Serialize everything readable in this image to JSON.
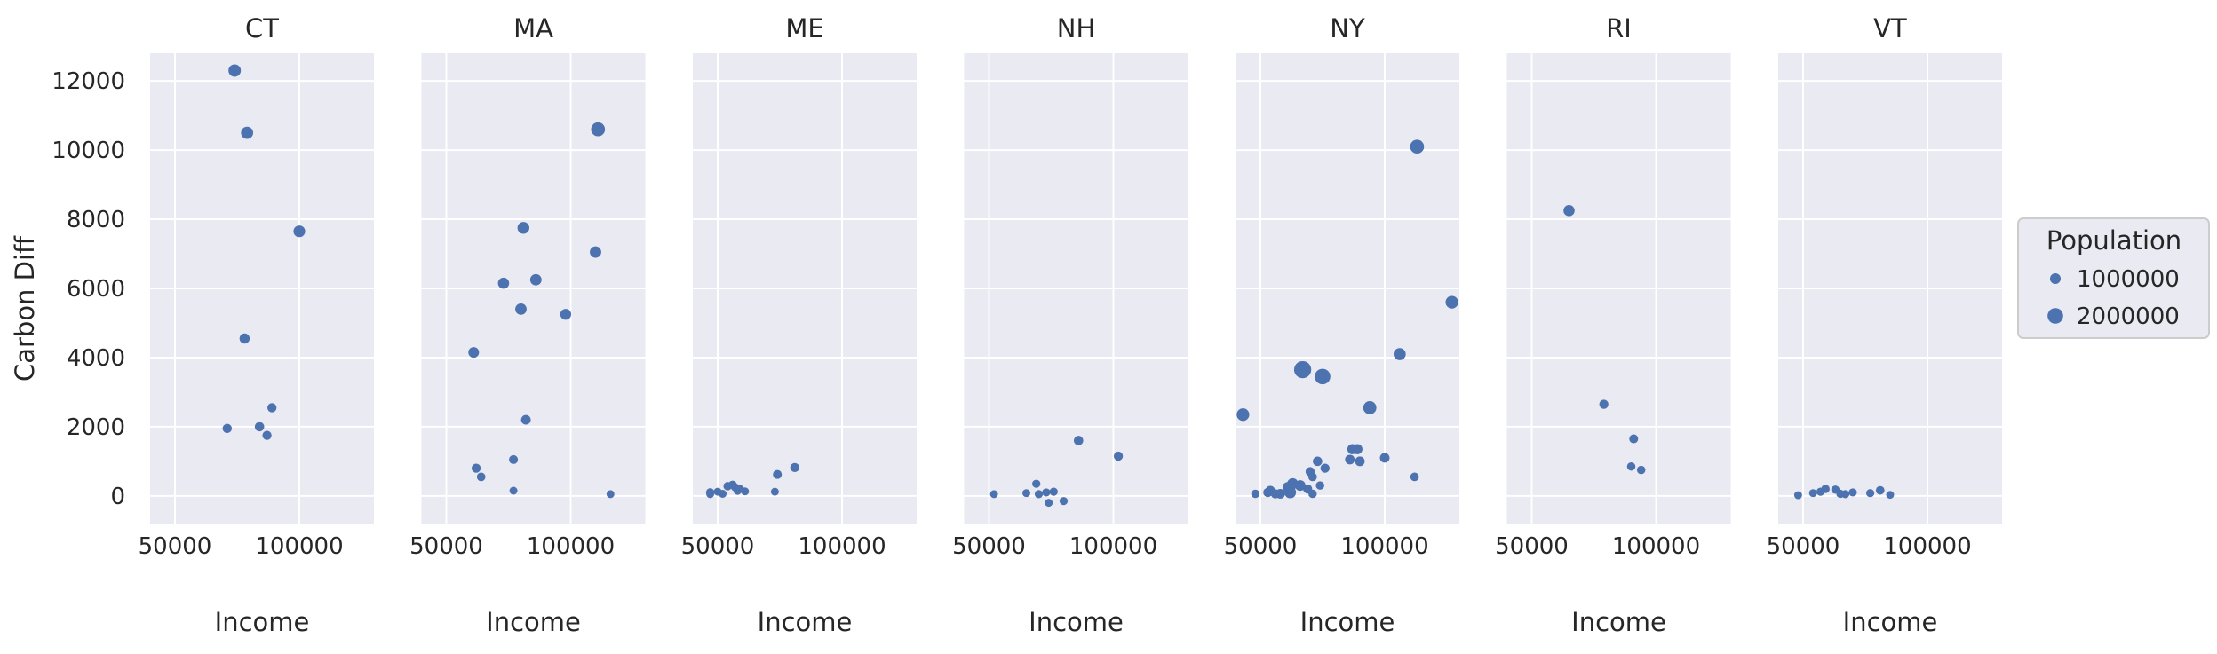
{
  "chart_data": {
    "type": "scatter",
    "facet_by": "state",
    "xlabel": "Income",
    "ylabel": "Carbon Diff",
    "xlim": [
      40000,
      130000
    ],
    "ylim": [
      -800,
      12800
    ],
    "xticks": [
      50000,
      100000
    ],
    "yticks": [
      0,
      2000,
      4000,
      6000,
      8000,
      10000,
      12000
    ],
    "grid": true,
    "color": "#4c72b0",
    "legend": {
      "title": "Population",
      "placement": "right",
      "entries": [
        {
          "label": "1000000",
          "value": 1000000
        },
        {
          "label": "2000000",
          "value": 2000000
        }
      ]
    },
    "panels": [
      {
        "title": "CT",
        "points": [
          {
            "x": 74000,
            "y": 12300,
            "pop": 1350000
          },
          {
            "x": 79000,
            "y": 10500,
            "pop": 1300000
          },
          {
            "x": 100000,
            "y": 7650,
            "pop": 1200000
          },
          {
            "x": 78000,
            "y": 4550,
            "pop": 900000
          },
          {
            "x": 71000,
            "y": 1950,
            "pop": 700000
          },
          {
            "x": 84000,
            "y": 2000,
            "pop": 750000
          },
          {
            "x": 87000,
            "y": 1750,
            "pop": 700000
          },
          {
            "x": 89000,
            "y": 2550,
            "pop": 700000
          }
        ]
      },
      {
        "title": "MA",
        "points": [
          {
            "x": 111000,
            "y": 10600,
            "pop": 1650000
          },
          {
            "x": 81000,
            "y": 7750,
            "pop": 1250000
          },
          {
            "x": 110000,
            "y": 7050,
            "pop": 1150000
          },
          {
            "x": 73000,
            "y": 6150,
            "pop": 1100000
          },
          {
            "x": 86000,
            "y": 6250,
            "pop": 1150000
          },
          {
            "x": 80000,
            "y": 5400,
            "pop": 1150000
          },
          {
            "x": 98000,
            "y": 5250,
            "pop": 1050000
          },
          {
            "x": 61000,
            "y": 4150,
            "pop": 1000000
          },
          {
            "x": 82000,
            "y": 2200,
            "pop": 800000
          },
          {
            "x": 62000,
            "y": 800,
            "pop": 700000
          },
          {
            "x": 64000,
            "y": 550,
            "pop": 600000
          },
          {
            "x": 77000,
            "y": 1050,
            "pop": 650000
          },
          {
            "x": 77000,
            "y": 150,
            "pop": 450000
          },
          {
            "x": 116000,
            "y": 50,
            "pop": 450000
          }
        ]
      },
      {
        "title": "ME",
        "points": [
          {
            "x": 47000,
            "y": 100,
            "pop": 550000
          },
          {
            "x": 47000,
            "y": 50,
            "pop": 450000
          },
          {
            "x": 50000,
            "y": 120,
            "pop": 450000
          },
          {
            "x": 52000,
            "y": 60,
            "pop": 450000
          },
          {
            "x": 54000,
            "y": 280,
            "pop": 550000
          },
          {
            "x": 56000,
            "y": 320,
            "pop": 550000
          },
          {
            "x": 57000,
            "y": 250,
            "pop": 500000
          },
          {
            "x": 58000,
            "y": 150,
            "pop": 500000
          },
          {
            "x": 59000,
            "y": 200,
            "pop": 450000
          },
          {
            "x": 61000,
            "y": 130,
            "pop": 450000
          },
          {
            "x": 73000,
            "y": 120,
            "pop": 450000
          },
          {
            "x": 74000,
            "y": 620,
            "pop": 650000
          },
          {
            "x": 81000,
            "y": 820,
            "pop": 700000
          }
        ]
      },
      {
        "title": "NH",
        "points": [
          {
            "x": 52000,
            "y": 50,
            "pop": 450000
          },
          {
            "x": 65000,
            "y": 80,
            "pop": 450000
          },
          {
            "x": 69000,
            "y": 350,
            "pop": 500000
          },
          {
            "x": 70000,
            "y": 50,
            "pop": 500000
          },
          {
            "x": 73000,
            "y": 100,
            "pop": 500000
          },
          {
            "x": 74000,
            "y": -200,
            "pop": 450000
          },
          {
            "x": 76000,
            "y": 120,
            "pop": 500000
          },
          {
            "x": 80000,
            "y": -150,
            "pop": 500000
          },
          {
            "x": 86000,
            "y": 1600,
            "pop": 750000
          },
          {
            "x": 102000,
            "y": 1150,
            "pop": 700000
          }
        ]
      },
      {
        "title": "NY",
        "points": [
          {
            "x": 113000,
            "y": 10100,
            "pop": 1650000
          },
          {
            "x": 127000,
            "y": 5600,
            "pop": 1400000
          },
          {
            "x": 106000,
            "y": 4100,
            "pop": 1300000
          },
          {
            "x": 43000,
            "y": 2350,
            "pop": 1400000
          },
          {
            "x": 67000,
            "y": 3650,
            "pop": 2300000
          },
          {
            "x": 75000,
            "y": 3450,
            "pop": 2000000
          },
          {
            "x": 94000,
            "y": 2550,
            "pop": 1500000
          },
          {
            "x": 100000,
            "y": 1100,
            "pop": 800000
          },
          {
            "x": 87000,
            "y": 1350,
            "pop": 900000
          },
          {
            "x": 89000,
            "y": 1350,
            "pop": 900000
          },
          {
            "x": 90000,
            "y": 1000,
            "pop": 800000
          },
          {
            "x": 86000,
            "y": 1050,
            "pop": 800000
          },
          {
            "x": 73000,
            "y": 1000,
            "pop": 750000
          },
          {
            "x": 76000,
            "y": 800,
            "pop": 700000
          },
          {
            "x": 70000,
            "y": 700,
            "pop": 700000
          },
          {
            "x": 71000,
            "y": 550,
            "pop": 600000
          },
          {
            "x": 112000,
            "y": 550,
            "pop": 600000
          },
          {
            "x": 63000,
            "y": 350,
            "pop": 1100000
          },
          {
            "x": 66000,
            "y": 300,
            "pop": 1000000
          },
          {
            "x": 61000,
            "y": 250,
            "pop": 950000
          },
          {
            "x": 54000,
            "y": 150,
            "pop": 800000
          },
          {
            "x": 62000,
            "y": 100,
            "pop": 1200000
          },
          {
            "x": 58000,
            "y": 60,
            "pop": 800000
          },
          {
            "x": 56000,
            "y": 60,
            "pop": 700000
          },
          {
            "x": 53000,
            "y": 100,
            "pop": 700000
          },
          {
            "x": 48000,
            "y": 60,
            "pop": 550000
          },
          {
            "x": 69000,
            "y": 200,
            "pop": 700000
          },
          {
            "x": 71000,
            "y": 60,
            "pop": 550000
          },
          {
            "x": 74000,
            "y": 300,
            "pop": 550000
          }
        ]
      },
      {
        "title": "RI",
        "points": [
          {
            "x": 65000,
            "y": 8250,
            "pop": 1100000
          },
          {
            "x": 79000,
            "y": 2650,
            "pop": 700000
          },
          {
            "x": 91000,
            "y": 1650,
            "pop": 650000
          },
          {
            "x": 90000,
            "y": 850,
            "pop": 550000
          },
          {
            "x": 94000,
            "y": 750,
            "pop": 550000
          }
        ]
      },
      {
        "title": "VT",
        "points": [
          {
            "x": 48000,
            "y": 20,
            "pop": 450000
          },
          {
            "x": 54000,
            "y": 80,
            "pop": 450000
          },
          {
            "x": 57000,
            "y": 120,
            "pop": 500000
          },
          {
            "x": 59000,
            "y": 200,
            "pop": 550000
          },
          {
            "x": 63000,
            "y": 180,
            "pop": 550000
          },
          {
            "x": 65000,
            "y": 60,
            "pop": 500000
          },
          {
            "x": 67000,
            "y": 50,
            "pop": 500000
          },
          {
            "x": 70000,
            "y": 100,
            "pop": 500000
          },
          {
            "x": 77000,
            "y": 80,
            "pop": 500000
          },
          {
            "x": 81000,
            "y": 160,
            "pop": 600000
          },
          {
            "x": 85000,
            "y": 30,
            "pop": 450000
          }
        ]
      }
    ]
  }
}
